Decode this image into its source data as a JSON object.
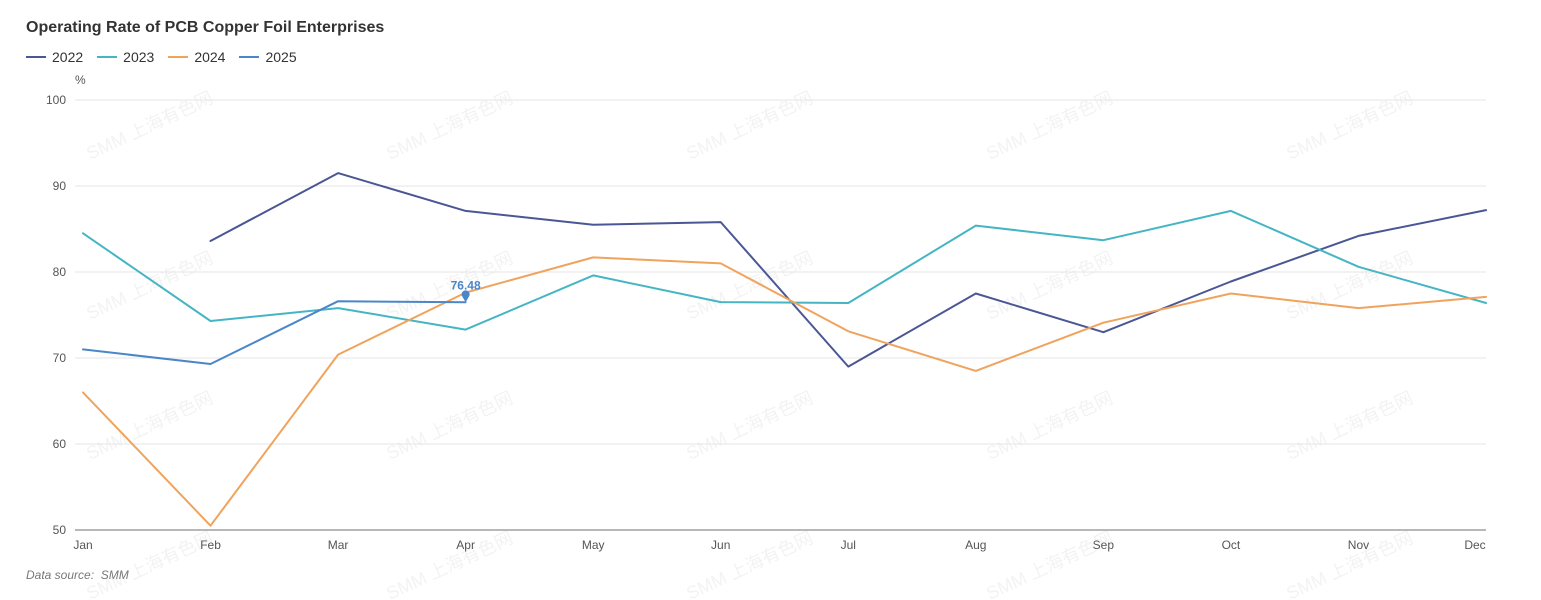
{
  "page": {
    "title": "Operating Rate of PCB Copper Foil Enterprises",
    "source_label": "Data source:",
    "source_value": "SMM",
    "watermark_text": "SMM 上海有色网"
  },
  "chart_data": {
    "type": "line",
    "title": "Operating Rate of PCB Copper Foil Enterprises",
    "xlabel": "",
    "ylabel": "%",
    "categories": [
      "Jan",
      "Feb",
      "Mar",
      "Apr",
      "May",
      "Jun",
      "Jul",
      "Aug",
      "Sep",
      "Oct",
      "Nov",
      "Dec"
    ],
    "ylim": [
      50,
      100
    ],
    "yticks": [
      50,
      60,
      70,
      80,
      90,
      100
    ],
    "grid": true,
    "legend_position": "top-left",
    "series": [
      {
        "name": "2022",
        "color": "#4b5694",
        "values": [
          null,
          83.6,
          91.5,
          87.1,
          85.5,
          85.8,
          69.0,
          77.5,
          73.0,
          78.9,
          84.2,
          87.2
        ]
      },
      {
        "name": "2023",
        "color": "#45b5c4",
        "values": [
          84.5,
          74.3,
          75.8,
          73.3,
          79.6,
          76.5,
          76.4,
          85.4,
          83.7,
          87.1,
          80.6,
          76.4
        ]
      },
      {
        "name": "2024",
        "color": "#f0a35c",
        "values": [
          66.0,
          50.5,
          70.4,
          77.6,
          81.7,
          81.0,
          73.1,
          68.5,
          74.1,
          77.5,
          75.8,
          77.1
        ]
      },
      {
        "name": "2025",
        "color": "#4a86c8",
        "values": [
          71.0,
          69.3,
          76.6,
          76.48,
          null,
          null,
          null,
          null,
          null,
          null,
          null,
          null
        ],
        "annotation": {
          "index": 3,
          "label": "76.48"
        }
      }
    ]
  }
}
